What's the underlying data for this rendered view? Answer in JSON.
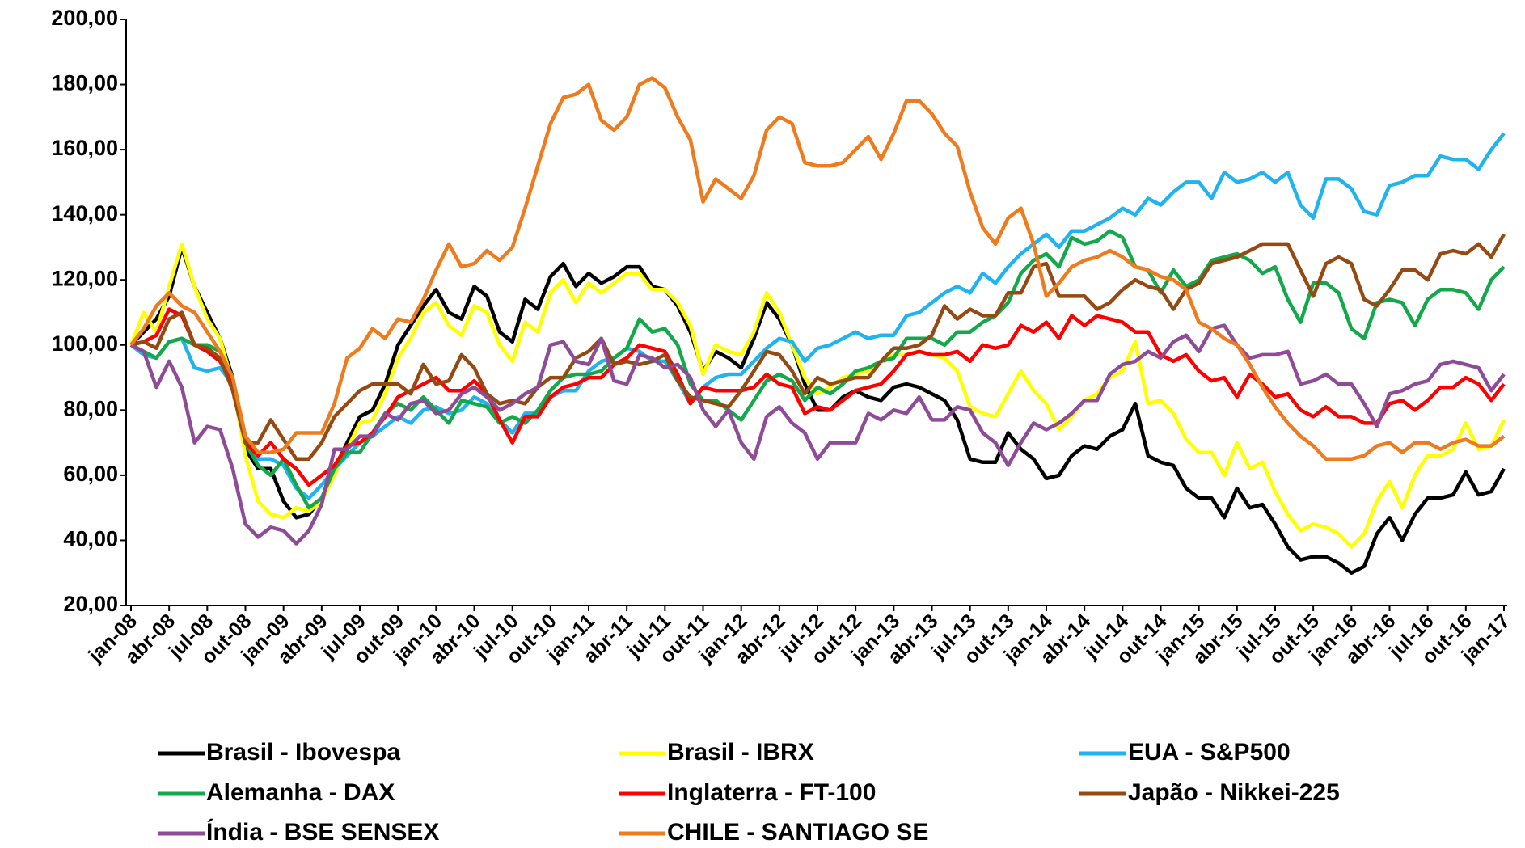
{
  "chart_data": {
    "type": "line",
    "categories": [
      "jan-08",
      null,
      null,
      "abr-08",
      null,
      null,
      "jul-08",
      null,
      null,
      "out-08",
      null,
      null,
      "jan-09",
      null,
      null,
      "abr-09",
      null,
      null,
      "jul-09",
      null,
      null,
      "out-09",
      null,
      null,
      "jan-10",
      null,
      null,
      "abr-10",
      null,
      null,
      "jul-10",
      null,
      null,
      "out-10",
      null,
      null,
      "jan-11",
      null,
      null,
      "abr-11",
      null,
      null,
      "jul-11",
      null,
      null,
      "out-11",
      null,
      null,
      "jan-12",
      null,
      null,
      "abr-12",
      null,
      null,
      "jul-12",
      null,
      null,
      "out-12",
      null,
      null,
      "jan-13",
      null,
      null,
      "abr-13",
      null,
      null,
      "jul-13",
      null,
      null,
      "out-13",
      null,
      null,
      "jan-14",
      null,
      null,
      "abr-14",
      null,
      null,
      "jul-14",
      null,
      null,
      "out-14",
      null,
      null,
      "jan-15",
      null,
      null,
      "abr-15",
      null,
      null,
      "jul-15",
      null,
      null,
      "out-15",
      null,
      null,
      "jan-16",
      null,
      null,
      "abr-16",
      null,
      null,
      "jul-16",
      null,
      null,
      "out-16",
      null,
      null,
      "jan-17"
    ],
    "series": [
      {
        "name": "Brasil - Ibovespa",
        "color": "#000000",
        "values": [
          100,
          104,
          108,
          115,
          130,
          118,
          110,
          102,
          90,
          68,
          62,
          62,
          52,
          47,
          48,
          53,
          62,
          70,
          78,
          80,
          88,
          100,
          106,
          112,
          117,
          110,
          108,
          118,
          115,
          104,
          101,
          114,
          111,
          121,
          125,
          118,
          122,
          119,
          121,
          124,
          124,
          118,
          117,
          112,
          104,
          92,
          98,
          96,
          93,
          102,
          113,
          108,
          100,
          88,
          80,
          80,
          84,
          86,
          84,
          83,
          87,
          88,
          87,
          85,
          83,
          77,
          65,
          64,
          64,
          73,
          68,
          65,
          59,
          60,
          66,
          69,
          68,
          72,
          74,
          82,
          66,
          64,
          63,
          56,
          53,
          53,
          47,
          56,
          50,
          51,
          45,
          38,
          34,
          35,
          35,
          33,
          30,
          32,
          42,
          47,
          40,
          48,
          53,
          53,
          54,
          61,
          54,
          55,
          62
        ]
      },
      {
        "name": "Brasil - IBRX",
        "color": "#ffff00",
        "values": [
          100,
          110,
          104,
          118,
          131,
          118,
          108,
          102,
          88,
          66,
          52,
          48,
          47,
          50,
          49,
          52,
          60,
          68,
          76,
          77,
          85,
          96,
          102,
          110,
          113,
          106,
          103,
          112,
          110,
          100,
          95,
          107,
          104,
          116,
          120,
          113,
          119,
          116,
          119,
          122,
          122,
          117,
          117,
          113,
          106,
          91,
          100,
          98,
          97,
          104,
          116,
          110,
          100,
          90,
          85,
          87,
          90,
          91,
          92,
          95,
          97,
          97,
          98,
          97,
          96,
          92,
          81,
          79,
          78,
          85,
          92,
          86,
          82,
          74,
          78,
          83,
          85,
          90,
          92,
          101,
          82,
          83,
          79,
          71,
          67,
          67,
          60,
          70,
          62,
          64,
          55,
          48,
          43,
          45,
          44,
          42,
          38,
          42,
          52,
          58,
          50,
          60,
          66,
          66,
          68,
          76,
          68,
          69,
          77
        ]
      },
      {
        "name": "EUA - S&P500",
        "color": "#1fb3f0",
        "values": [
          100,
          97,
          96,
          101,
          102,
          93,
          92,
          93,
          88,
          72,
          65,
          65,
          63,
          56,
          53,
          57,
          62,
          66,
          70,
          72,
          75,
          78,
          76,
          80,
          81,
          79,
          80,
          84,
          82,
          77,
          73,
          79,
          79,
          84,
          86,
          86,
          92,
          95,
          96,
          99,
          98,
          95,
          95,
          89,
          82,
          87,
          90,
          91,
          91,
          95,
          99,
          102,
          101,
          95,
          99,
          100,
          102,
          104,
          102,
          103,
          103,
          109,
          110,
          113,
          116,
          118,
          116,
          122,
          119,
          124,
          128,
          131,
          134,
          130,
          135,
          135,
          137,
          139,
          142,
          140,
          145,
          143,
          147,
          150,
          150,
          145,
          153,
          150,
          151,
          153,
          150,
          153,
          143,
          139,
          151,
          151,
          148,
          141,
          140,
          149,
          150,
          152,
          152,
          158,
          157,
          157,
          154,
          160,
          165
        ]
      },
      {
        "name": "Alemanha - DAX",
        "color": "#13a84a",
        "values": [
          100,
          98,
          96,
          101,
          102,
          100,
          100,
          98,
          90,
          70,
          63,
          60,
          65,
          57,
          50,
          53,
          62,
          67,
          67,
          73,
          79,
          82,
          80,
          84,
          80,
          76,
          83,
          82,
          81,
          76,
          78,
          76,
          80,
          86,
          90,
          91,
          91,
          92,
          96,
          99,
          108,
          104,
          105,
          100,
          88,
          83,
          83,
          80,
          77,
          83,
          89,
          91,
          89,
          83,
          87,
          85,
          88,
          92,
          93,
          95,
          96,
          102,
          102,
          102,
          100,
          104,
          104,
          107,
          109,
          113,
          122,
          126,
          128,
          124,
          133,
          131,
          132,
          135,
          133,
          124,
          123,
          116,
          123,
          118,
          120,
          126,
          127,
          128,
          126,
          122,
          124,
          114,
          107,
          119,
          119,
          116,
          105,
          102,
          113,
          114,
          113,
          106,
          114,
          117,
          117,
          116,
          111,
          120,
          124
        ]
      },
      {
        "name": "Inglaterra - FT-100",
        "color": "#ff0000",
        "values": [
          100,
          101,
          103,
          111,
          109,
          100,
          98,
          95,
          88,
          70,
          66,
          70,
          65,
          62,
          57,
          60,
          63,
          69,
          70,
          73,
          78,
          84,
          86,
          88,
          90,
          86,
          86,
          89,
          85,
          77,
          70,
          78,
          78,
          84,
          87,
          88,
          90,
          90,
          94,
          96,
          100,
          99,
          98,
          91,
          82,
          87,
          86,
          86,
          86,
          87,
          91,
          88,
          87,
          79,
          81,
          80,
          83,
          86,
          87,
          88,
          92,
          97,
          98,
          97,
          97,
          98,
          95,
          100,
          99,
          100,
          106,
          104,
          107,
          102,
          109,
          106,
          109,
          108,
          107,
          104,
          104,
          97,
          95,
          97,
          92,
          89,
          90,
          84,
          91,
          88,
          84,
          85,
          80,
          78,
          81,
          78,
          78,
          76,
          76,
          82,
          83,
          80,
          83,
          87,
          87,
          90,
          88,
          83,
          88
        ]
      },
      {
        "name": "Japão - Nikkei-225",
        "color": "#944a12",
        "values": [
          100,
          101,
          99,
          108,
          110,
          100,
          99,
          96,
          86,
          70,
          70,
          77,
          71,
          65,
          65,
          70,
          78,
          82,
          86,
          88,
          88,
          88,
          85,
          94,
          88,
          89,
          97,
          93,
          85,
          82,
          83,
          82,
          87,
          90,
          90,
          96,
          98,
          102,
          94,
          95,
          94,
          95,
          97,
          89,
          84,
          83,
          82,
          81,
          86,
          92,
          98,
          97,
          92,
          85,
          90,
          88,
          89,
          90,
          90,
          95,
          99,
          99,
          100,
          103,
          112,
          108,
          111,
          109,
          109,
          116,
          116,
          124,
          125,
          115,
          115,
          115,
          111,
          113,
          117,
          120,
          118,
          117,
          111,
          117,
          119,
          125,
          126,
          127,
          129,
          131,
          131,
          131,
          123,
          115,
          125,
          127,
          125,
          114,
          112,
          117,
          123,
          123,
          120,
          128,
          129,
          128,
          131,
          127,
          134
        ]
      },
      {
        "name": "Índia - BSE SENSEX",
        "color": "#8e4b97",
        "values": [
          100,
          98,
          87,
          95,
          87,
          70,
          75,
          74,
          62,
          45,
          41,
          44,
          43,
          39,
          43,
          51,
          68,
          68,
          72,
          72,
          79,
          77,
          82,
          83,
          79,
          80,
          85,
          87,
          84,
          80,
          82,
          85,
          87,
          100,
          101,
          95,
          94,
          102,
          89,
          88,
          97,
          96,
          93,
          94,
          90,
          80,
          75,
          80,
          70,
          65,
          78,
          81,
          76,
          73,
          65,
          70,
          70,
          70,
          79,
          77,
          80,
          79,
          84,
          77,
          77,
          81,
          80,
          73,
          70,
          63,
          70,
          76,
          74,
          76,
          79,
          83,
          83,
          91,
          94,
          95,
          98,
          96,
          101,
          103,
          98,
          105,
          106,
          100,
          96,
          97,
          97,
          98,
          88,
          89,
          91,
          88,
          88,
          82,
          75,
          85,
          86,
          88,
          89,
          94,
          95,
          94,
          93,
          86,
          91
        ]
      },
      {
        "name": "CHILE - SANTIAGO SE",
        "color": "#ef7b1f",
        "values": [
          100,
          105,
          112,
          116,
          112,
          110,
          104,
          98,
          90,
          72,
          67,
          67,
          68,
          73,
          73,
          73,
          82,
          96,
          99,
          105,
          102,
          108,
          107,
          114,
          123,
          131,
          124,
          125,
          129,
          126,
          130,
          142,
          155,
          168,
          176,
          177,
          180,
          169,
          166,
          170,
          180,
          182,
          179,
          170,
          163,
          144,
          151,
          148,
          145,
          152,
          166,
          170,
          168,
          156,
          155,
          155,
          156,
          160,
          164,
          157,
          165,
          175,
          175,
          171,
          165,
          161,
          147,
          136,
          131,
          139,
          142,
          131,
          115,
          119,
          124,
          126,
          127,
          129,
          127,
          124,
          123,
          121,
          120,
          117,
          107,
          105,
          102,
          100,
          94,
          87,
          81,
          76,
          72,
          69,
          65,
          65,
          65,
          66,
          69,
          70,
          67,
          70,
          70,
          68,
          70,
          71,
          69,
          69,
          72
        ]
      }
    ],
    "ylim": [
      20,
      200
    ],
    "yticks": [
      {
        "value": 20,
        "label": "20,00"
      },
      {
        "value": 40,
        "label": "40,00"
      },
      {
        "value": 60,
        "label": "60,00"
      },
      {
        "value": 80,
        "label": "80,00"
      },
      {
        "value": 100,
        "label": "100,00"
      },
      {
        "value": 120,
        "label": "120,00"
      },
      {
        "value": 140,
        "label": "140,00"
      },
      {
        "value": 160,
        "label": "160,00"
      },
      {
        "value": 180,
        "label": "180,00"
      },
      {
        "value": 200,
        "label": "200,00"
      }
    ],
    "grid": false
  }
}
